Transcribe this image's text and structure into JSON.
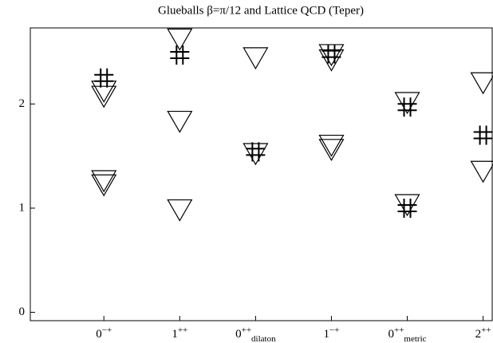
{
  "chart_data": {
    "type": "scatter",
    "title": "Glueballs β=π/12 and Lattice QCD (Teper)",
    "categories": [
      {
        "base": "0",
        "sup": "−+"
      },
      {
        "base": "1",
        "sup": "++"
      },
      {
        "base": "0",
        "sup": "++",
        "sub": "dilaton"
      },
      {
        "base": "1",
        "sup": "−+"
      },
      {
        "base": "0",
        "sup": "++",
        "sub": "metric"
      },
      {
        "base": "2",
        "sup": "++"
      }
    ],
    "xlim": [
      -0.97,
      5.12
    ],
    "ylim": [
      -0.08,
      2.73
    ],
    "yticks": [
      0,
      1,
      2
    ],
    "series": [
      {
        "marker": "triangle",
        "color": "#000000",
        "x": [
          0,
          0,
          0,
          0,
          1,
          1,
          1,
          2,
          2,
          3,
          3,
          3,
          3,
          4,
          4,
          5,
          5
        ],
        "values": [
          2.12,
          2.07,
          1.26,
          1.22,
          2.62,
          1.83,
          0.98,
          2.44,
          1.52,
          2.47,
          2.42,
          1.6,
          1.56,
          2.01,
          1.03,
          2.2,
          1.35
        ]
      },
      {
        "marker": "hash",
        "color": "#000000",
        "x": [
          0,
          1,
          2,
          3,
          4,
          4,
          5
        ],
        "values": [
          2.25,
          2.47,
          1.54,
          2.48,
          1.97,
          1.0,
          1.7
        ]
      }
    ]
  }
}
